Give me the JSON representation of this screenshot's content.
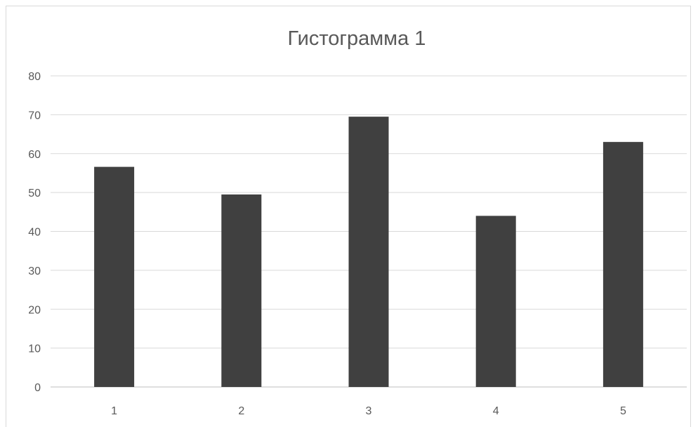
{
  "chart_data": {
    "type": "bar",
    "title": "Гистограмма 1",
    "xlabel": "",
    "ylabel": "",
    "categories": [
      "1",
      "2",
      "3",
      "4",
      "5"
    ],
    "values": [
      56.6,
      49.5,
      69.5,
      44.0,
      63.0
    ],
    "ylim": [
      0,
      80
    ],
    "y_ticks": [
      0,
      10,
      20,
      30,
      40,
      50,
      60,
      70,
      80
    ],
    "grid": true,
    "legend": "none",
    "colors": {
      "bar": "#404040",
      "grid": "#d9d9d9",
      "text": "#595959"
    }
  }
}
